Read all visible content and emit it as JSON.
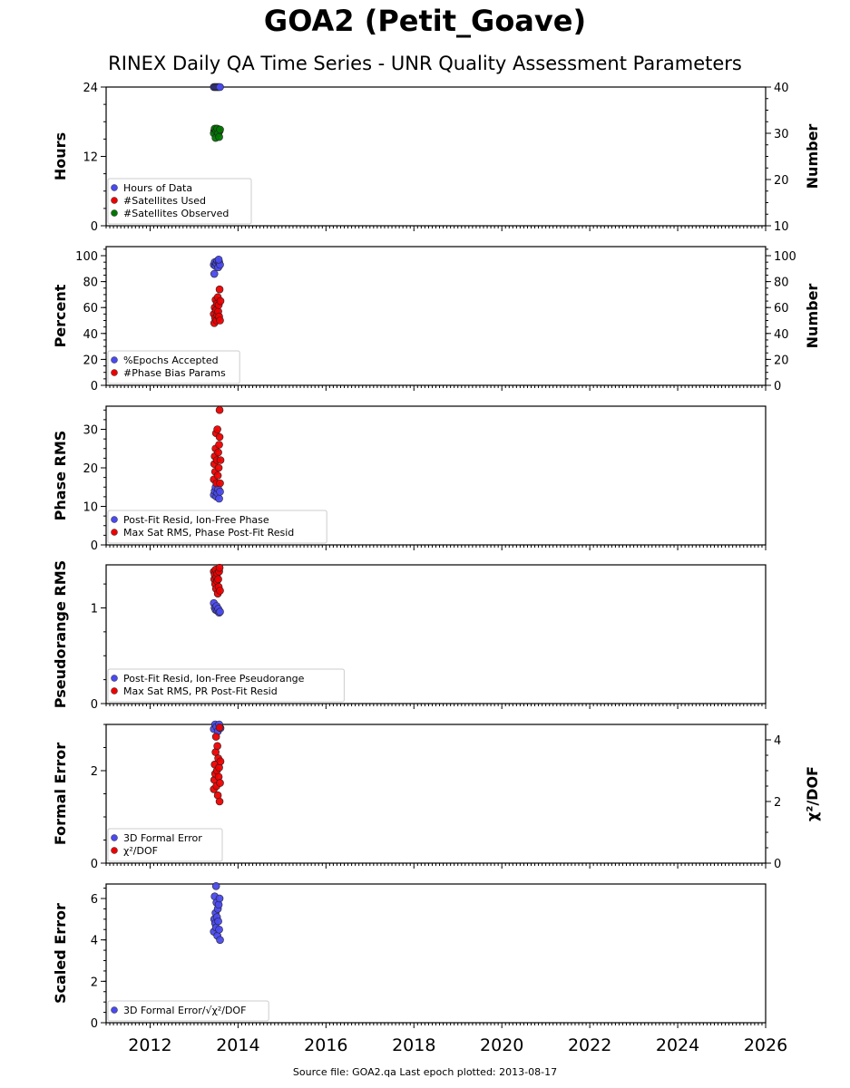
{
  "title": "GOA2 (Petit_Goave)",
  "subtitle": "RINEX Daily QA Time Series - UNR Quality Assessment Parameters",
  "footer": "Source file: GOA2.qa Last epoch plotted: 2013-08-17",
  "colors": {
    "blue": "#4a4aef",
    "red": "#ee0000",
    "green": "#007700"
  },
  "chart_data": [
    {
      "type": "scatter",
      "ylabel": "Hours",
      "ylabel_right": "Number",
      "ylim": [
        0,
        24
      ],
      "ylim_right": [
        10,
        40
      ],
      "yticks": [
        "0",
        "12",
        "24"
      ],
      "yticks_right": [
        "10",
        "20",
        "30",
        "40"
      ],
      "legend": "lower-left",
      "series": [
        {
          "name": "Hours of Data",
          "axis": "left",
          "color": "#4a4aef",
          "x": [
            2013.45,
            2013.47,
            2013.49,
            2013.51,
            2013.53,
            2013.55,
            2013.57,
            2013.59
          ],
          "y": [
            24,
            24,
            24,
            24,
            24,
            24,
            24,
            24
          ]
        },
        {
          "name": "#Satellites Used",
          "axis": "right",
          "color": "#ee0000",
          "x": [
            2013.46,
            2013.5,
            2013.54,
            2013.58
          ],
          "y": [
            30.5,
            31,
            30,
            30.5
          ]
        },
        {
          "name": "#Satellites Observed",
          "axis": "right",
          "color": "#007700",
          "x": [
            2013.45,
            2013.47,
            2013.49,
            2013.51,
            2013.53,
            2013.55,
            2013.57,
            2013.59
          ],
          "y": [
            30,
            31,
            29,
            30.5,
            31,
            30,
            29.2,
            30.8
          ]
        }
      ]
    },
    {
      "type": "scatter",
      "ylabel": "Percent",
      "ylabel_right": "Number",
      "ylim": [
        0,
        107
      ],
      "ylim_right": [
        0,
        107
      ],
      "yticks": [
        "0",
        "20",
        "40",
        "60",
        "80",
        "100"
      ],
      "yticks_right": [
        "0",
        "20",
        "40",
        "60",
        "80",
        "100"
      ],
      "legend": "lower-left",
      "series": [
        {
          "name": "%Epochs Accepted",
          "axis": "left",
          "color": "#4a4aef",
          "x": [
            2013.45,
            2013.47,
            2013.49,
            2013.51,
            2013.53,
            2013.55,
            2013.57,
            2013.59,
            2013.46,
            2013.56
          ],
          "y": [
            93,
            95,
            92,
            94,
            96,
            91,
            95,
            93,
            86,
            97
          ]
        },
        {
          "name": "#Phase Bias Params",
          "axis": "right",
          "color": "#ee0000",
          "x": [
            2013.45,
            2013.46,
            2013.47,
            2013.48,
            2013.49,
            2013.5,
            2013.51,
            2013.52,
            2013.53,
            2013.54,
            2013.55,
            2013.56,
            2013.57,
            2013.58,
            2013.59,
            2013.6
          ],
          "y": [
            55,
            48,
            60,
            52,
            66,
            58,
            50,
            63,
            54,
            68,
            57,
            62,
            53,
            74,
            50,
            65
          ]
        }
      ]
    },
    {
      "type": "scatter",
      "ylabel": "Phase RMS",
      "ylim": [
        0,
        36
      ],
      "yticks": [
        "0",
        "10",
        "20",
        "30"
      ],
      "legend": "lower-left",
      "series": [
        {
          "name": "Post-Fit Resid, Ion-Free Phase",
          "axis": "left",
          "color": "#4a4aef",
          "x": [
            2013.45,
            2013.47,
            2013.49,
            2013.51,
            2013.53,
            2013.55,
            2013.57,
            2013.59
          ],
          "y": [
            13,
            14,
            15,
            12.5,
            13.5,
            14.5,
            12,
            13.8
          ]
        },
        {
          "name": "Max Sat RMS, Phase Post-Fit Resid",
          "axis": "left",
          "color": "#ee0000",
          "x": [
            2013.45,
            2013.46,
            2013.47,
            2013.48,
            2013.49,
            2013.5,
            2013.51,
            2013.52,
            2013.53,
            2013.54,
            2013.55,
            2013.56,
            2013.57,
            2013.58,
            2013.59,
            2013.6,
            2013.58
          ],
          "y": [
            17,
            21,
            23,
            19,
            25,
            29,
            16,
            22,
            30,
            18,
            24,
            20,
            26,
            28,
            16,
            22,
            35
          ]
        }
      ]
    },
    {
      "type": "scatter",
      "ylabel": "Pseudorange RMS",
      "ylim": [
        0,
        1.45
      ],
      "yticks": [
        "0",
        "1"
      ],
      "legend": "lower-left",
      "series": [
        {
          "name": "Post-Fit Resid, Ion-Free Pseudorange",
          "axis": "left",
          "color": "#4a4aef",
          "x": [
            2013.45,
            2013.47,
            2013.49,
            2013.51,
            2013.53,
            2013.55,
            2013.57,
            2013.59
          ],
          "y": [
            1.05,
            1.0,
            0.98,
            1.02,
            0.97,
            0.99,
            0.95,
            0.96
          ]
        },
        {
          "name": "Max Sat RMS, PR Post-Fit Resid",
          "axis": "left",
          "color": "#ee0000",
          "x": [
            2013.45,
            2013.46,
            2013.47,
            2013.48,
            2013.49,
            2013.5,
            2013.51,
            2013.52,
            2013.53,
            2013.54,
            2013.55,
            2013.56,
            2013.57,
            2013.58,
            2013.59
          ],
          "y": [
            1.38,
            1.3,
            1.35,
            1.25,
            1.4,
            1.2,
            1.32,
            1.28,
            1.36,
            1.15,
            1.3,
            1.22,
            1.38,
            1.42,
            1.18
          ]
        }
      ]
    },
    {
      "type": "scatter",
      "ylabel": "Formal Error",
      "ylabel_right": "χ²/DOF",
      "ylim": [
        0,
        3.0
      ],
      "ylim_right": [
        0,
        4.5
      ],
      "yticks": [
        "0",
        "2"
      ],
      "yticks_right": [
        "0",
        "2",
        "4"
      ],
      "legend": "lower-left",
      "series": [
        {
          "name": "3D Formal Error",
          "axis": "left",
          "color": "#4a4aef",
          "x": [
            2013.45,
            2013.48,
            2013.51,
            2013.54,
            2013.57,
            2013.6
          ],
          "y": [
            2.9,
            3.0,
            2.95,
            2.85,
            3.0,
            2.92
          ]
        },
        {
          "name": "χ²/DOF",
          "axis": "right",
          "color": "#ee0000",
          "x": [
            2013.45,
            2013.46,
            2013.47,
            2013.48,
            2013.49,
            2013.5,
            2013.51,
            2013.52,
            2013.53,
            2013.54,
            2013.55,
            2013.56,
            2013.57,
            2013.58,
            2013.59,
            2013.6,
            2013.58
          ],
          "y": [
            2.4,
            2.7,
            3.2,
            2.9,
            3.6,
            4.1,
            2.5,
            3.0,
            3.8,
            2.2,
            3.4,
            2.8,
            3.1,
            2.0,
            2.6,
            3.3,
            4.4
          ]
        }
      ]
    },
    {
      "type": "scatter",
      "ylabel": "Scaled Error",
      "ylim": [
        0,
        6.7
      ],
      "yticks": [
        "0",
        "2",
        "4",
        "6"
      ],
      "legend": "lower-left",
      "series": [
        {
          "name": "3D Formal Error/√χ²/DOF",
          "axis": "left",
          "color": "#4a4aef",
          "x": [
            2013.45,
            2013.46,
            2013.47,
            2013.48,
            2013.49,
            2013.5,
            2013.51,
            2013.52,
            2013.53,
            2013.54,
            2013.55,
            2013.56,
            2013.57,
            2013.58,
            2013.59,
            2013.5
          ],
          "y": [
            4.4,
            5.0,
            6.1,
            4.8,
            5.3,
            4.6,
            5.8,
            5.1,
            4.2,
            5.5,
            4.9,
            5.7,
            4.5,
            6.0,
            4.0,
            6.6
          ]
        }
      ]
    }
  ],
  "xaxis": {
    "xlim": [
      2011.0,
      2026.0
    ],
    "xticks": [
      "2012",
      "2014",
      "2016",
      "2018",
      "2020",
      "2022",
      "2024",
      "2026"
    ]
  }
}
